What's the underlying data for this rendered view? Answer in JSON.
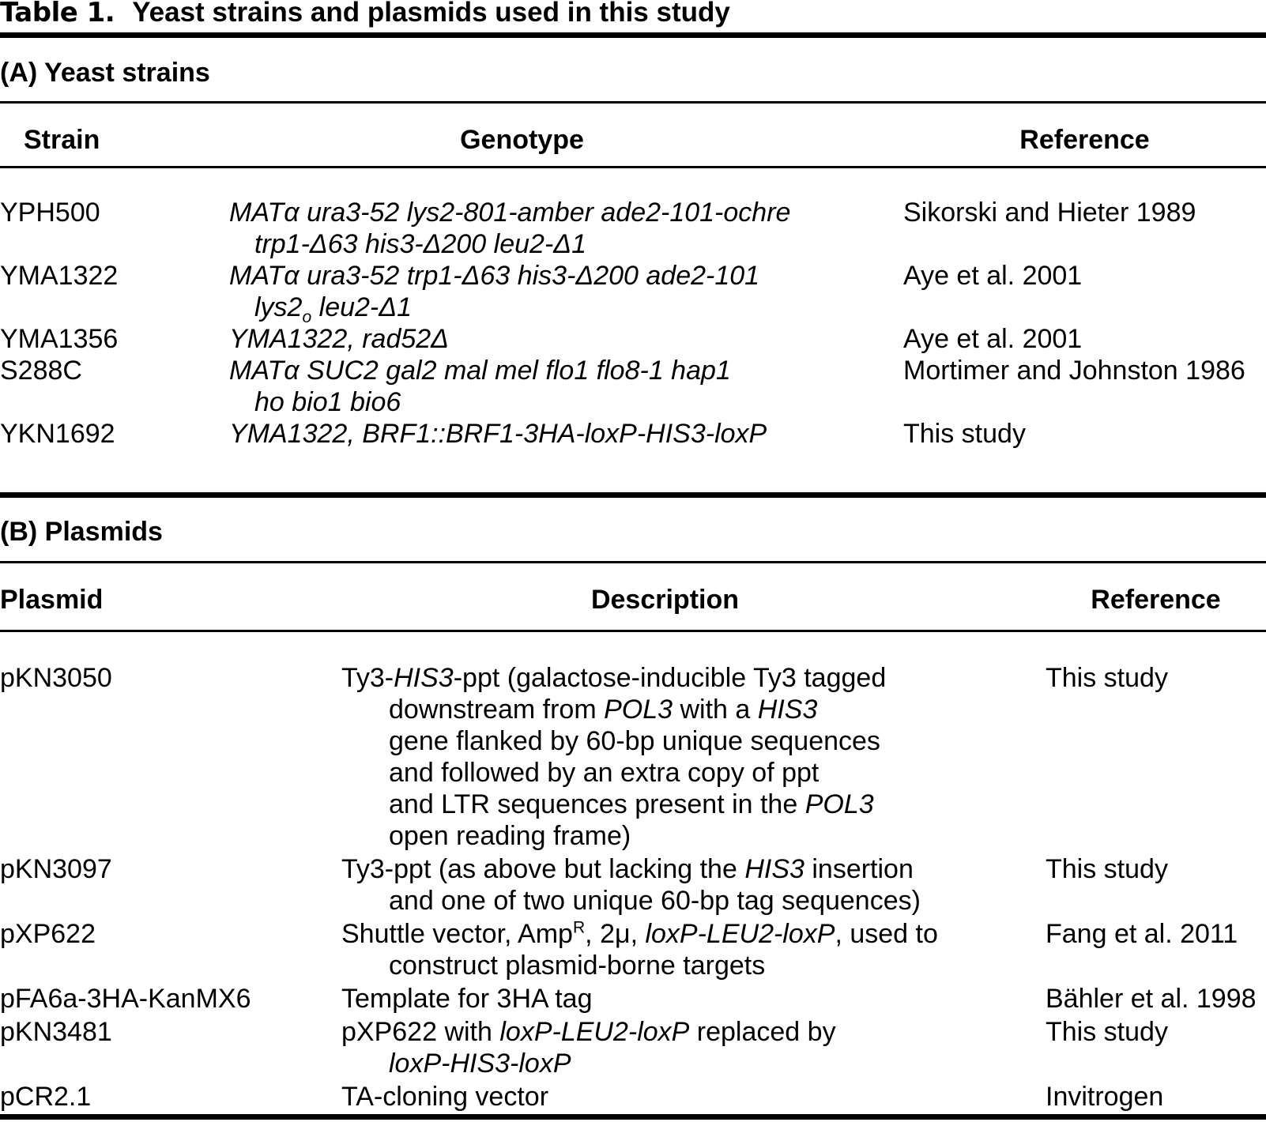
{
  "caption": {
    "label": "Table 1.",
    "title": "Yeast strains and plasmids used in this study"
  },
  "section_a": {
    "heading": "(A) Yeast strains",
    "columns": [
      "Strain",
      "Genotype",
      "Reference"
    ],
    "rows": [
      {
        "strain": "YPH500",
        "genotype": [
          {
            "ind": 0,
            "seg": [
              {
                "t": "MATα ura3-52 lys2-801-amber ade2-101-ochre",
                "i": true
              }
            ]
          },
          {
            "ind": 1,
            "seg": [
              {
                "t": "trp1-Δ63 his3-Δ200 leu2-Δ1",
                "i": true
              }
            ]
          }
        ],
        "reference": "Sikorski and Hieter 1989"
      },
      {
        "strain": "YMA1322",
        "genotype": [
          {
            "ind": 0,
            "seg": [
              {
                "t": "MATα ura3-52 trp1-Δ63 his3-Δ200 ade2-101",
                "i": true
              }
            ]
          },
          {
            "ind": 1,
            "seg": [
              {
                "t": "lys2",
                "i": true
              },
              {
                "t": "o",
                "i": true,
                "sub": true
              },
              {
                "t": " leu2-Δ1",
                "i": true
              }
            ]
          }
        ],
        "reference": "Aye et al. 2001"
      },
      {
        "strain": "YMA1356",
        "genotype": [
          {
            "ind": 0,
            "seg": [
              {
                "t": "YMA1322, rad52Δ",
                "i": true
              }
            ]
          }
        ],
        "reference": "Aye et al. 2001"
      },
      {
        "strain": "S288C",
        "genotype": [
          {
            "ind": 0,
            "seg": [
              {
                "t": "MATα SUC2 gal2 mal mel flo1 flo8-1 hap1",
                "i": true
              }
            ]
          },
          {
            "ind": 1,
            "seg": [
              {
                "t": "ho bio1 bio6",
                "i": true
              }
            ]
          }
        ],
        "reference": "Mortimer and Johnston 1986"
      },
      {
        "strain": "YKN1692",
        "genotype": [
          {
            "ind": 0,
            "seg": [
              {
                "t": "YMA1322, BRF1::BRF1-3HA-loxP-HIS3-loxP",
                "i": true
              }
            ]
          }
        ],
        "reference": "This study"
      }
    ]
  },
  "section_b": {
    "heading": "(B) Plasmids",
    "columns": [
      "Plasmid",
      "Description",
      "Reference"
    ],
    "rows": [
      {
        "plasmid": "pKN3050",
        "description": [
          {
            "ind": 0,
            "seg": [
              {
                "t": "Ty3-"
              },
              {
                "t": "HIS3",
                "i": true
              },
              {
                "t": "-ppt (galactose-inducible Ty3 tagged"
              }
            ]
          },
          {
            "ind": 1,
            "seg": [
              {
                "t": "downstream from "
              },
              {
                "t": "POL3",
                "i": true
              },
              {
                "t": " with a "
              },
              {
                "t": "HIS3",
                "i": true
              }
            ]
          },
          {
            "ind": 1,
            "seg": [
              {
                "t": "gene flanked by 60-bp unique sequences"
              }
            ]
          },
          {
            "ind": 1,
            "seg": [
              {
                "t": "and followed by an extra copy of ppt"
              }
            ]
          },
          {
            "ind": 1,
            "seg": [
              {
                "t": "and LTR sequences present in the "
              },
              {
                "t": "POL3",
                "i": true
              }
            ]
          },
          {
            "ind": 1,
            "seg": [
              {
                "t": "open reading frame)"
              }
            ]
          }
        ],
        "reference": "This study"
      },
      {
        "plasmid": "pKN3097",
        "description": [
          {
            "ind": 0,
            "seg": [
              {
                "t": "Ty3-ppt (as above but lacking the "
              },
              {
                "t": "HIS3",
                "i": true
              },
              {
                "t": " insertion"
              }
            ]
          },
          {
            "ind": 1,
            "seg": [
              {
                "t": "and one of two unique 60-bp tag sequences)"
              }
            ]
          }
        ],
        "reference": "This study"
      },
      {
        "plasmid": "pXP622",
        "description": [
          {
            "ind": 0,
            "seg": [
              {
                "t": "Shuttle vector, Amp"
              },
              {
                "t": "R",
                "sup": true
              },
              {
                "t": ", 2μ, "
              },
              {
                "t": "loxP-LEU2-loxP",
                "i": true
              },
              {
                "t": ", used to"
              }
            ]
          },
          {
            "ind": 1,
            "seg": [
              {
                "t": "construct plasmid-borne targets"
              }
            ]
          }
        ],
        "reference": "Fang et al. 2011"
      },
      {
        "plasmid": "pFA6a-3HA-KanMX6",
        "description": [
          {
            "ind": 0,
            "seg": [
              {
                "t": "Template for 3HA tag"
              }
            ]
          }
        ],
        "reference": "Bähler et al. 1998"
      },
      {
        "plasmid": "pKN3481",
        "description": [
          {
            "ind": 0,
            "seg": [
              {
                "t": "pXP622 with "
              },
              {
                "t": "loxP-LEU2-loxP",
                "i": true
              },
              {
                "t": " replaced by"
              }
            ]
          },
          {
            "ind": 1,
            "seg": [
              {
                "t": "loxP-HIS3-loxP",
                "i": true
              }
            ]
          }
        ],
        "reference": "This study"
      },
      {
        "plasmid": "pCR2.1",
        "description": [
          {
            "ind": 0,
            "seg": [
              {
                "t": "TA-cloning vector"
              }
            ]
          }
        ],
        "reference": "Invitrogen"
      }
    ]
  }
}
